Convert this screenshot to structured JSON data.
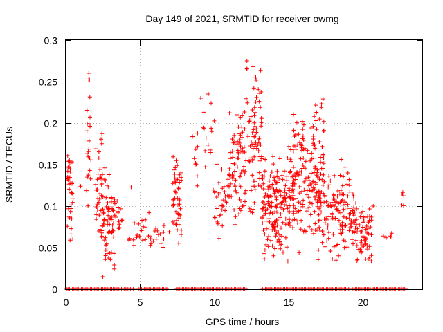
{
  "chart_data": {
    "type": "scatter",
    "title": "Day 149 of 2021, SRMTID for receiver owmg",
    "xlabel": "GPS time / hours",
    "ylabel": "SRMTID / TECUs",
    "xlim": [
      0,
      24
    ],
    "ylim": [
      0,
      0.3
    ],
    "x_ticks": [
      0,
      5,
      10,
      15,
      20
    ],
    "x_tick_labels": [
      "0",
      "5",
      "10",
      "15",
      "20"
    ],
    "y_ticks": [
      0,
      0.05,
      0.1,
      0.15,
      0.2,
      0.25,
      0.3
    ],
    "y_tick_labels": [
      "0",
      "0.05",
      "0.1",
      "0.15",
      "0.2",
      "0.25",
      "0.3"
    ],
    "grid": true,
    "marker": "+",
    "color": "#ff0000",
    "zero_ranges": [
      [
        0.05,
        1.95
      ],
      [
        2.1,
        3.3
      ],
      [
        3.45,
        4.55
      ],
      [
        4.9,
        6.85
      ],
      [
        7.45,
        11.75
      ],
      [
        11.85,
        12.15
      ],
      [
        13.25,
        19.05
      ],
      [
        19.3,
        20.5
      ],
      [
        20.7,
        22.9
      ]
    ],
    "clusters": [
      {
        "x": [
          0.1,
          0.5
        ],
        "y": [
          0.05,
          0.19
        ],
        "n": 38
      },
      {
        "x": [
          1.4,
          1.7
        ],
        "y": [
          0.07,
          0.26
        ],
        "n": 22
      },
      {
        "x": [
          2.0,
          2.5
        ],
        "y": [
          0.05,
          0.2
        ],
        "n": 40
      },
      {
        "x": [
          2.4,
          3.3
        ],
        "y": [
          0.015,
          0.16
        ],
        "n": 70
      },
      {
        "x": [
          3.3,
          3.8
        ],
        "y": [
          0.06,
          0.11
        ],
        "n": 14
      },
      {
        "x": [
          4.2,
          5.4
        ],
        "y": [
          0.045,
          0.095
        ],
        "n": 18
      },
      {
        "x": [
          5.5,
          7.0
        ],
        "y": [
          0.05,
          0.08
        ],
        "n": 18
      },
      {
        "x": [
          7.2,
          7.8
        ],
        "y": [
          0.05,
          0.165
        ],
        "n": 50
      },
      {
        "x": [
          8.5,
          10.0
        ],
        "y": [
          0.09,
          0.24
        ],
        "n": 24
      },
      {
        "x": [
          10.0,
          11.0
        ],
        "y": [
          0.06,
          0.16
        ],
        "n": 35
      },
      {
        "x": [
          11.0,
          12.0
        ],
        "y": [
          0.07,
          0.22
        ],
        "n": 70
      },
      {
        "x": [
          12.0,
          13.2
        ],
        "y": [
          0.08,
          0.275
        ],
        "n": 90
      },
      {
        "x": [
          13.2,
          14.3
        ],
        "y": [
          0.03,
          0.17
        ],
        "n": 110
      },
      {
        "x": [
          14.3,
          15.3
        ],
        "y": [
          0.03,
          0.18
        ],
        "n": 90
      },
      {
        "x": [
          15.3,
          16.6
        ],
        "y": [
          0.04,
          0.225
        ],
        "n": 110
      },
      {
        "x": [
          16.6,
          17.4
        ],
        "y": [
          0.03,
          0.235
        ],
        "n": 90
      },
      {
        "x": [
          17.4,
          18.8
        ],
        "y": [
          0.025,
          0.16
        ],
        "n": 90
      },
      {
        "x": [
          18.8,
          19.6
        ],
        "y": [
          0.04,
          0.14
        ],
        "n": 50
      },
      {
        "x": [
          19.6,
          20.6
        ],
        "y": [
          0.025,
          0.1
        ],
        "n": 60
      },
      {
        "x": [
          21.3,
          22.0
        ],
        "y": [
          0.055,
          0.07
        ],
        "n": 5
      },
      {
        "x": [
          22.5,
          22.8
        ],
        "y": [
          0.09,
          0.12
        ],
        "n": 6
      }
    ],
    "notable_points": [
      {
        "x": 12.2,
        "y": 0.275
      },
      {
        "x": 12.6,
        "y": 0.268
      },
      {
        "x": 9.6,
        "y": 0.235
      },
      {
        "x": 9.3,
        "y": 0.213
      },
      {
        "x": 1.55,
        "y": 0.26
      },
      {
        "x": 2.5,
        "y": 0.015
      },
      {
        "x": 4.4,
        "y": 0.123
      },
      {
        "x": 5.6,
        "y": 0.092
      },
      {
        "x": 1.0,
        "y": 0.124
      },
      {
        "x": 20.7,
        "y": 0.1
      },
      {
        "x": 19.0,
        "y": 0.14
      }
    ]
  }
}
